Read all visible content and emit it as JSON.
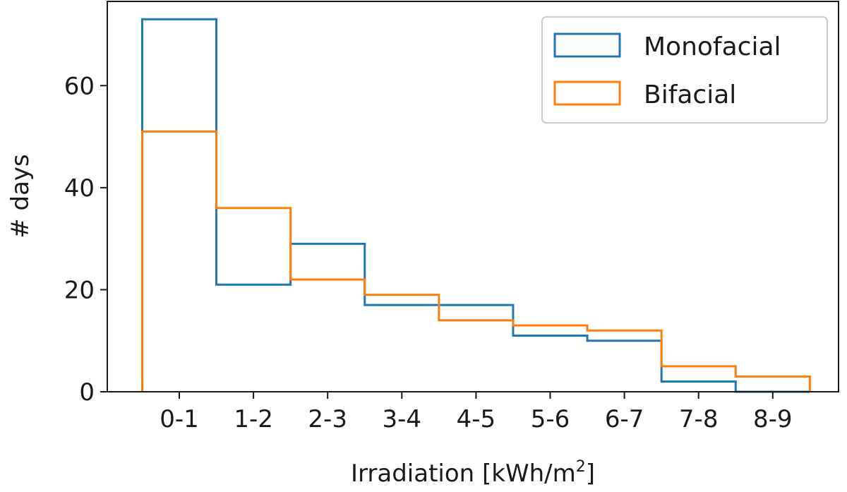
{
  "chart_data": {
    "type": "histogram-step",
    "title": "",
    "xlabel": "Irradiation [kWh/m",
    "xlabel_superscript": "2",
    "xlabel_suffix": "]",
    "ylabel": "# days",
    "categories": [
      "0-1",
      "1-2",
      "2-3",
      "3-4",
      "4-5",
      "5-6",
      "6-7",
      "7-8",
      "8-9"
    ],
    "ylim": [
      0,
      76.5
    ],
    "yticks": [
      0,
      20,
      40,
      60
    ],
    "grid": false,
    "legend_position": "top-right",
    "series": [
      {
        "name": "Monofacial",
        "color": "#1f77b4",
        "values": [
          73,
          21,
          29,
          17,
          17,
          11,
          10,
          2,
          0
        ]
      },
      {
        "name": "Bifacial",
        "color": "#ff7f0e",
        "values": [
          51,
          36,
          22,
          19,
          14,
          13,
          12,
          5,
          3
        ]
      }
    ]
  }
}
